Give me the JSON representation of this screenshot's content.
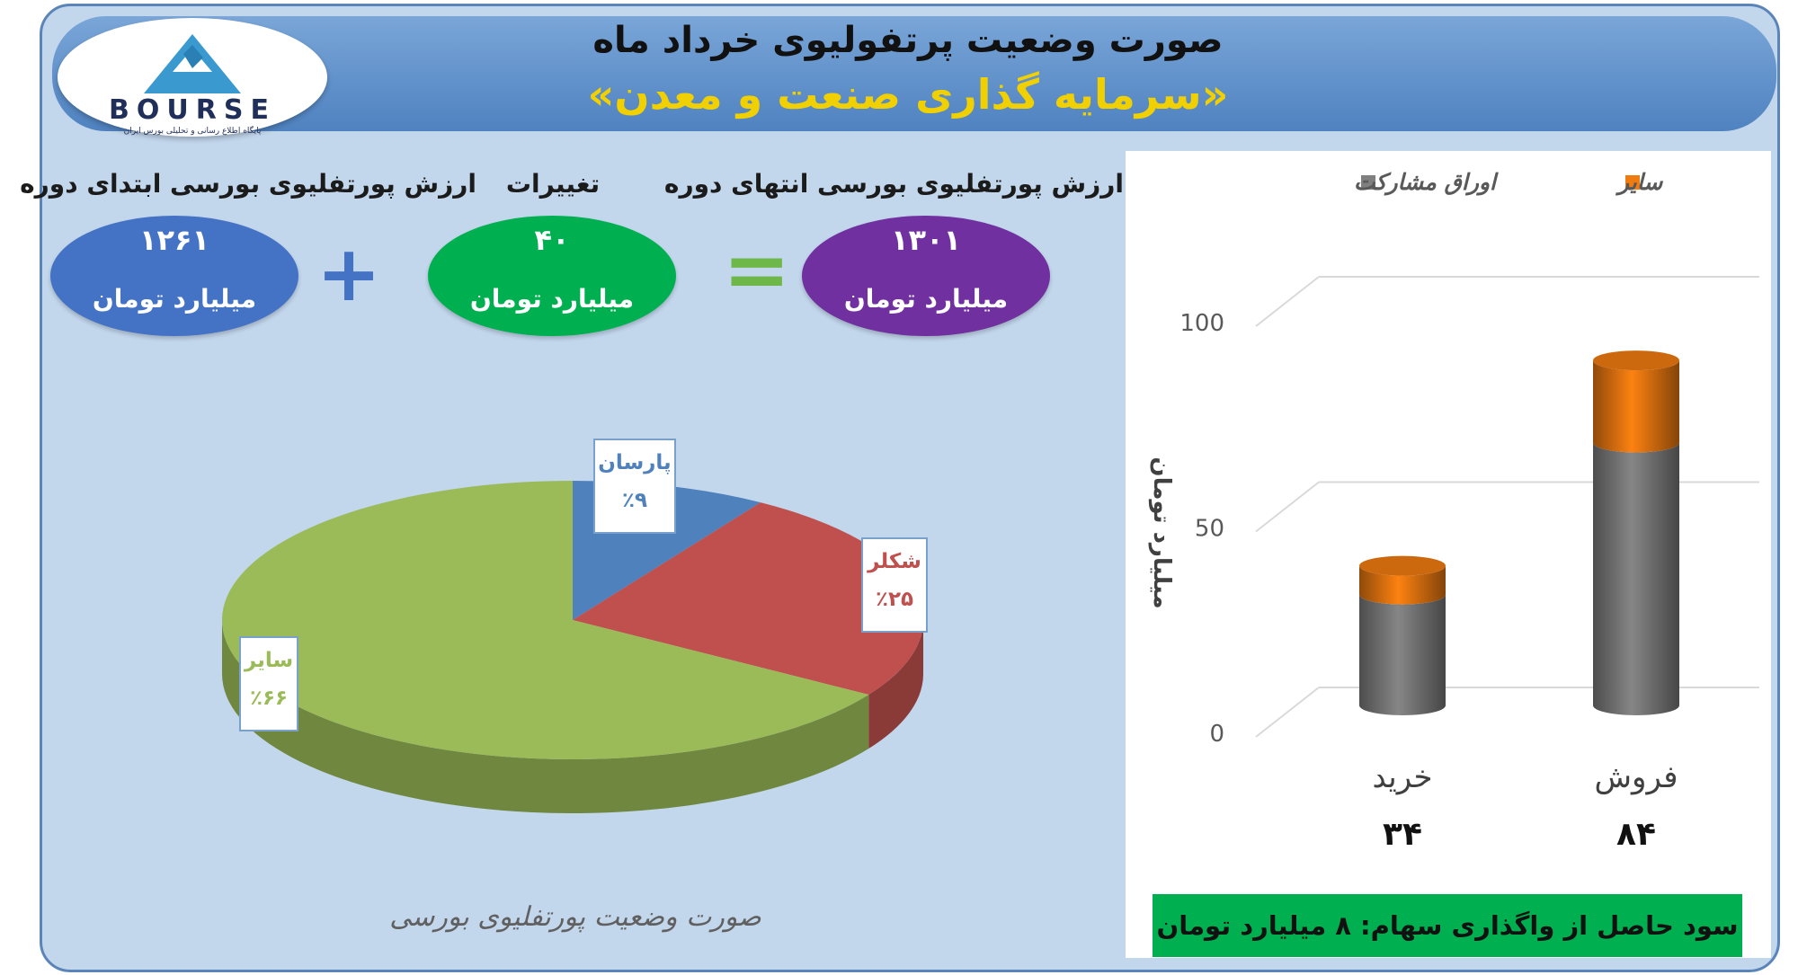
{
  "header": {
    "title": "صورت وضعیت پرتفولیوی خرداد ماه",
    "subtitle": "«سرمایه گذاری صنعت و معدن»"
  },
  "logo": {
    "text": "BOURSE",
    "tagline": "پایگاه اطلاع رسانی و تحلیلی بورس ایران"
  },
  "summary": {
    "start": {
      "label": "ارزش پورتفلیوی بورسی ابتدای دوره",
      "value": "۱۲۶۱",
      "unit": "میلیارد تومان",
      "color": "#4472c4"
    },
    "change": {
      "label": "تغییرات",
      "value": "۴۰",
      "unit": "میلیارد تومان",
      "color": "#00b050"
    },
    "end": {
      "label": "ارزش پورتفلیوی بورسی انتهای دوره",
      "value": "۱۳۰۱",
      "unit": "میلیارد تومان",
      "color": "#7030a0"
    },
    "plus_sign": "+",
    "equals_sign": "="
  },
  "pie": {
    "caption": "صورت وضعیت پورتفلیوی بورسی"
  },
  "bar": {
    "profit_text": "سود حاصل از واگذاری سهام: ۸ میلیارد تومان"
  },
  "chart_data": [
    {
      "type": "pie",
      "title": "صورت وضعیت پورتفلیوی بورسی",
      "slices": [
        {
          "name": "پارسان",
          "percent_label": "٪۹",
          "value": 9,
          "color": "#4f81bd"
        },
        {
          "name": "شکلر",
          "percent_label": "٪۲۵",
          "value": 25,
          "color": "#c0504d"
        },
        {
          "name": "سایر",
          "percent_label": "٪۶۶",
          "value": 66,
          "color": "#9bbb59"
        }
      ]
    },
    {
      "type": "bar",
      "stacked": true,
      "categories": [
        "خرید",
        "فروش"
      ],
      "category_totals": [
        "۳۴",
        "۸۴"
      ],
      "series": [
        {
          "name": "اوراق مشارکت",
          "values": [
            27,
            64
          ],
          "color": "#808080"
        },
        {
          "name": "سایر",
          "values": [
            7,
            20
          ],
          "color": "#f07c10"
        }
      ],
      "ylabel": "میلیارد تومان",
      "ylim": [
        0,
        100
      ],
      "yticks": [
        "0",
        "50",
        "100"
      ],
      "grid": true,
      "legend": "top"
    }
  ]
}
